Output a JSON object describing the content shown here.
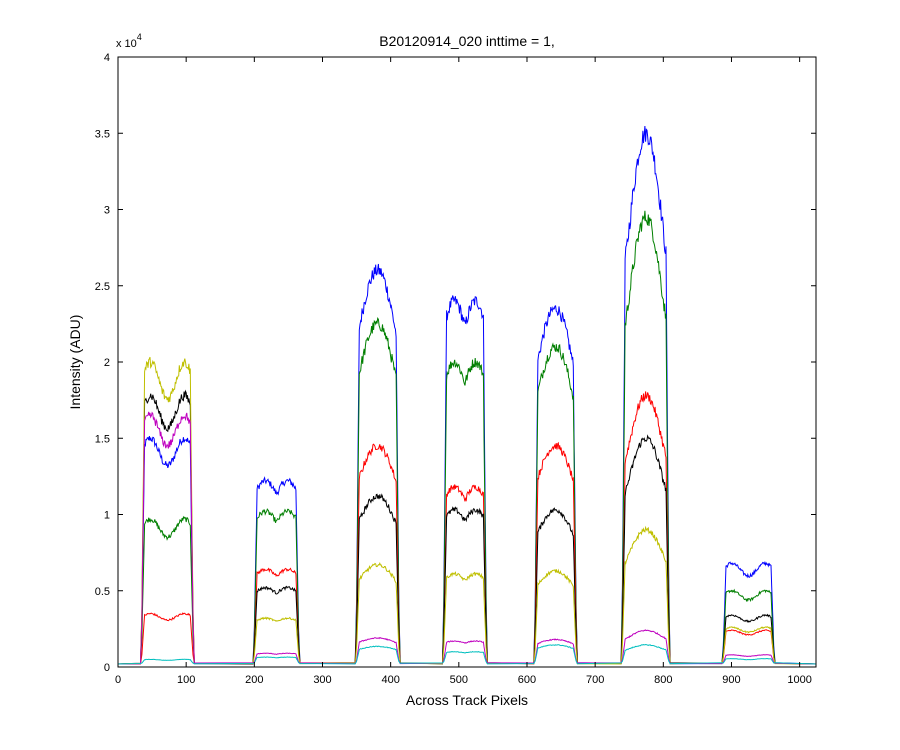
{
  "chart_data": {
    "type": "line",
    "title": "B20120914_020 inttime = 1,",
    "xlabel": "Across Track Pixels",
    "ylabel": "Intensity (ADU)",
    "y_multiplier_base": "x 10",
    "y_multiplier_exponent": "4",
    "xlim": [
      0,
      1024
    ],
    "ylim": [
      0,
      40000
    ],
    "xticks": [
      0,
      100,
      200,
      300,
      400,
      500,
      600,
      700,
      800,
      900,
      1000
    ],
    "yticks": [
      0,
      5000,
      10000,
      15000,
      20000,
      25000,
      30000,
      35000,
      40000
    ],
    "xtick_labels": [
      "0",
      "100",
      "200",
      "300",
      "400",
      "500",
      "600",
      "700",
      "800",
      "900",
      "1000"
    ],
    "ytick_labels": [
      "0",
      "0.5",
      "1",
      "1.5",
      "2",
      "2.5",
      "3",
      "3.5",
      "4"
    ],
    "grid": false,
    "baseline": 200,
    "segments": [
      {
        "start": 35,
        "end": 110
      },
      {
        "start": 200,
        "end": 265
      },
      {
        "start": 350,
        "end": 412
      },
      {
        "start": 478,
        "end": 540
      },
      {
        "start": 612,
        "end": 672
      },
      {
        "start": 740,
        "end": 808
      },
      {
        "start": 888,
        "end": 962
      }
    ],
    "series": [
      {
        "color": "#0000ff",
        "peaks": [
          15000,
          12200,
          26000,
          24000,
          23500,
          35000,
          6800
        ],
        "shape": [
          0,
          1,
          2,
          1,
          2,
          3,
          0
        ]
      },
      {
        "color": "#007f00",
        "peaks": [
          9700,
          10200,
          22500,
          20000,
          21000,
          29500,
          5000
        ],
        "shape": [
          0,
          1,
          2,
          1,
          2,
          3,
          0
        ]
      },
      {
        "color": "#ff0000",
        "peaks": [
          3500,
          6400,
          14500,
          11800,
          14500,
          17800,
          2400
        ],
        "shape": [
          0,
          1,
          2,
          1,
          2,
          3,
          0
        ]
      },
      {
        "color": "#000000",
        "peaks": [
          17800,
          5200,
          11200,
          10300,
          10300,
          15000,
          3400
        ],
        "shape": [
          0,
          1,
          2,
          1,
          2,
          3,
          0
        ]
      },
      {
        "color": "#bfbf00",
        "peaks": [
          20000,
          3200,
          6700,
          6100,
          6300,
          9000,
          2600
        ],
        "shape": [
          0,
          1,
          2,
          1,
          2,
          3,
          0
        ]
      },
      {
        "color": "#bf00bf",
        "peaks": [
          16500,
          900,
          1900,
          1700,
          1800,
          2400,
          800
        ],
        "shape": [
          0,
          1,
          2,
          1,
          2,
          3,
          0
        ]
      },
      {
        "color": "#00bfbf",
        "peaks": [
          500,
          650,
          1350,
          1000,
          1450,
          1450,
          550
        ],
        "shape": [
          0,
          1,
          2,
          1,
          2,
          3,
          0
        ]
      }
    ]
  }
}
